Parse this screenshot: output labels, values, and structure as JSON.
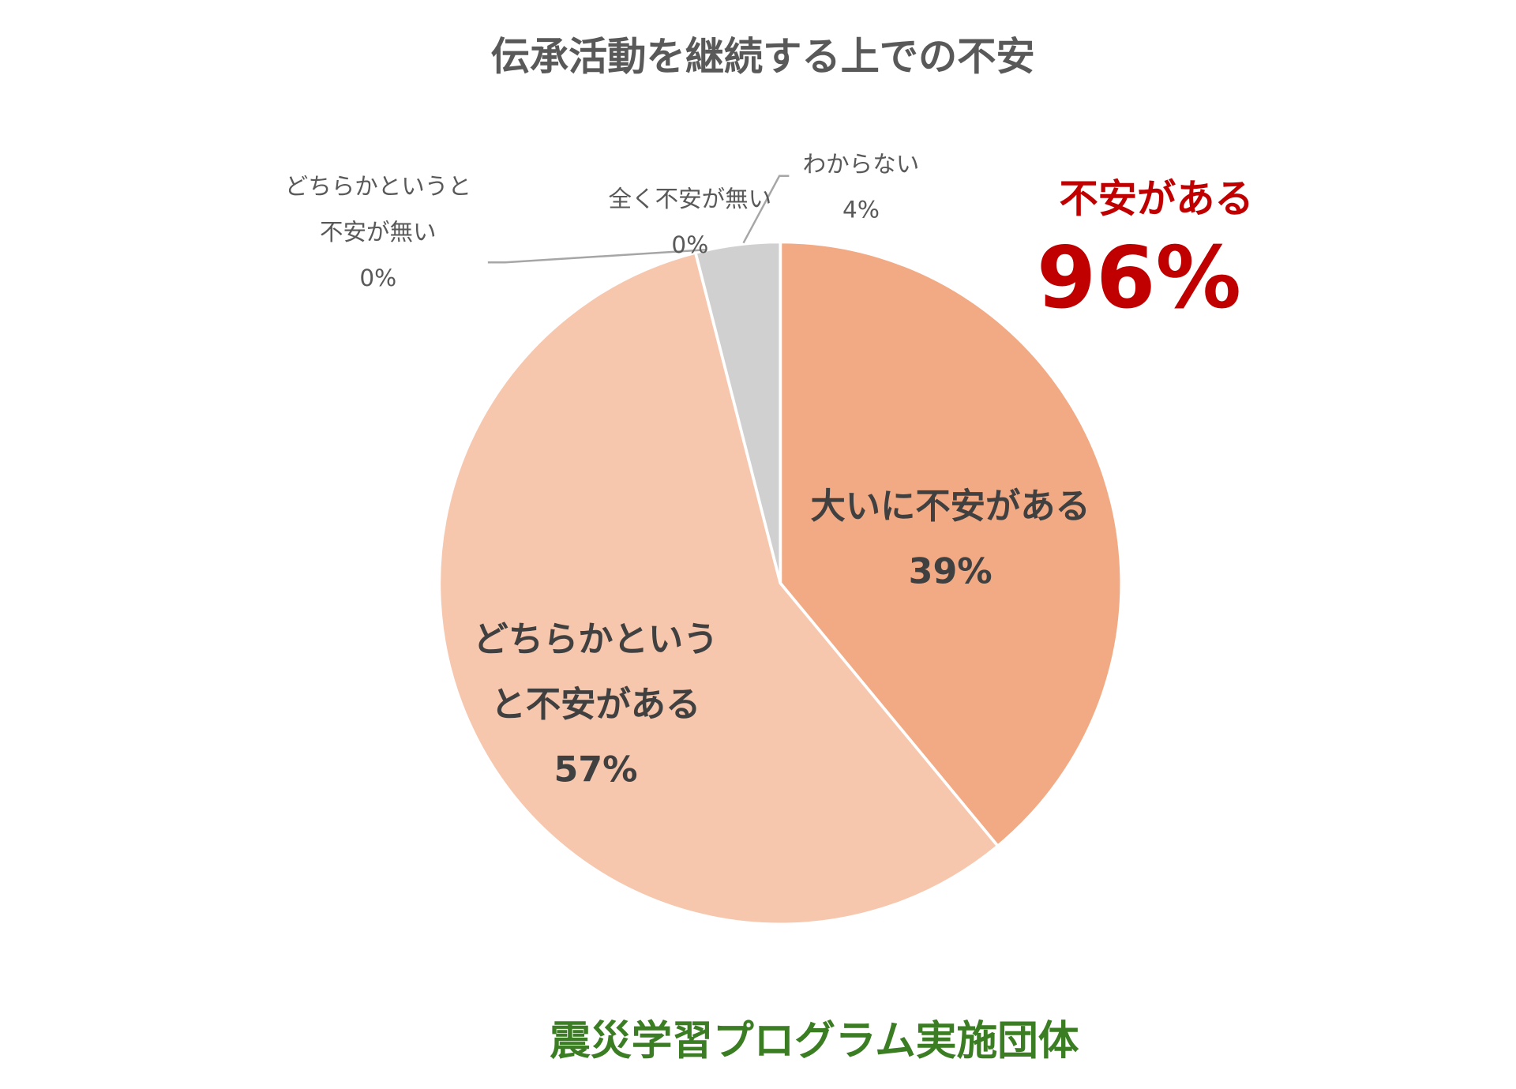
{
  "chart_data": {
    "type": "pie",
    "title": "伝承活動を継続する上での不安",
    "start": "12 o'clock, clockwise",
    "slices": [
      {
        "label_lines": [
          "大いに不安がある"
        ],
        "value_label": "39%",
        "value": 39,
        "color": "#F2AA84",
        "label_position": "inside"
      },
      {
        "label_lines": [
          "どちらかという",
          "と不安がある"
        ],
        "value_label": "57%",
        "value": 57,
        "color": "#F6C6AD",
        "label_position": "inside"
      },
      {
        "label_lines": [
          "どちらかというと",
          "不安が無い"
        ],
        "value_label": "0%",
        "value": 0,
        "color": "#E8E8E8",
        "label_position": "outside"
      },
      {
        "label_lines": [
          "全く不安が無い"
        ],
        "value_label": "0%",
        "value": 0,
        "color": "#E0E0E0",
        "label_position": "outside"
      },
      {
        "label_lines": [
          "わからない"
        ],
        "value_label": "4%",
        "value": 4,
        "color": "#D0D0D0",
        "label_position": "outside"
      }
    ],
    "annotation": {
      "label": "不安がある",
      "value": "96%",
      "color": "#C00000"
    },
    "footer": {
      "text": "震災学習プログラム実施団体",
      "color": "#3A7D22"
    }
  }
}
